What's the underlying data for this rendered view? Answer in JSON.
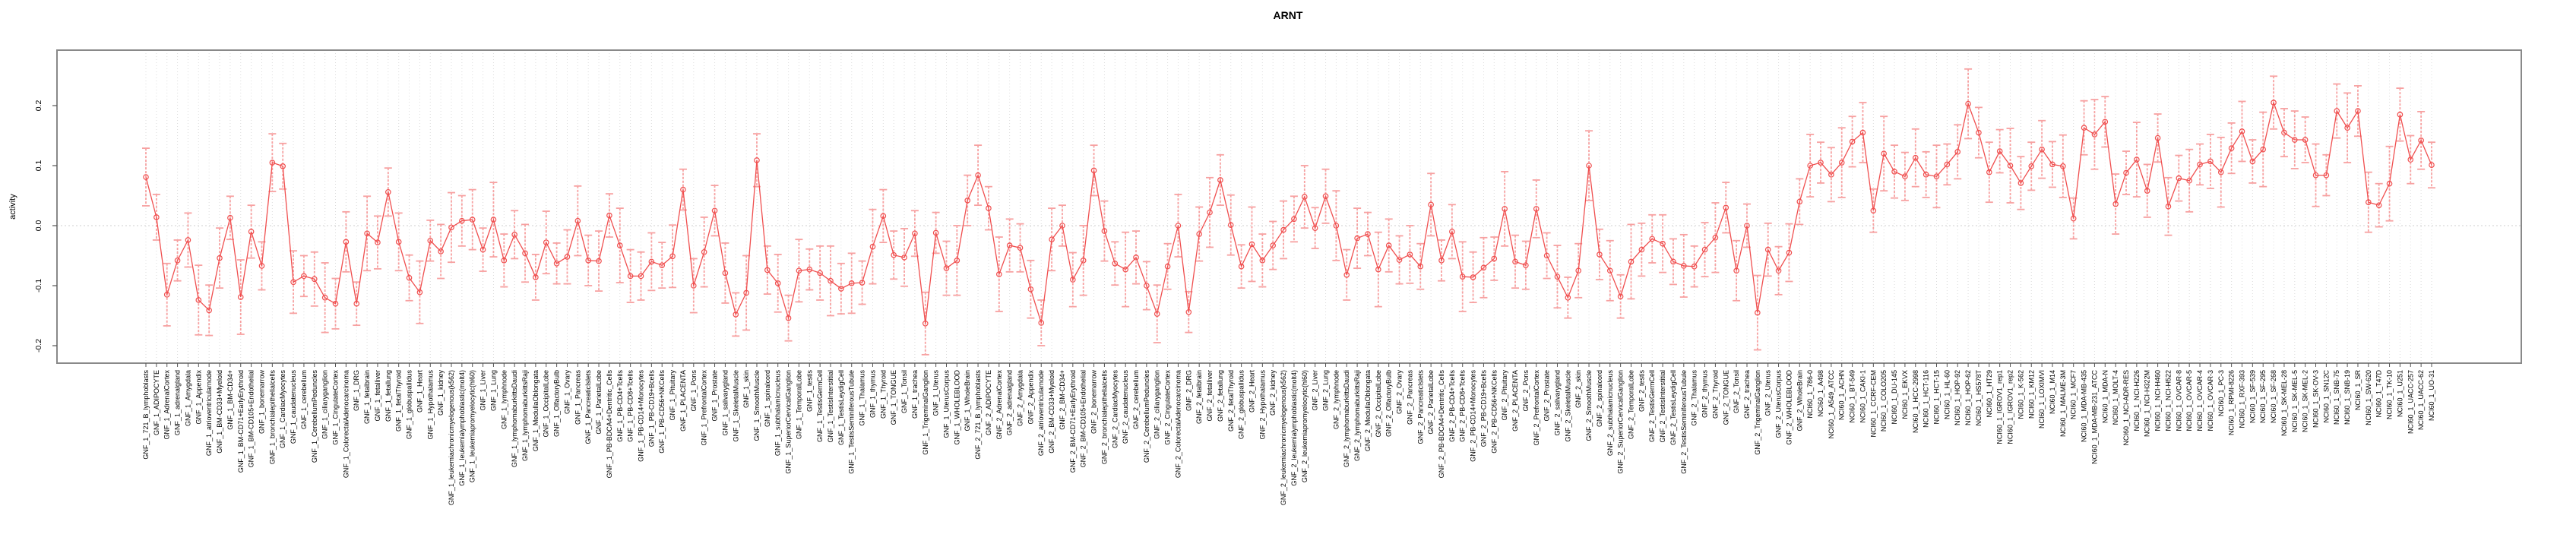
{
  "title": "ARNT",
  "chart_data": {
    "type": "line",
    "title": "ARNT",
    "xlabel": "",
    "ylabel": "activity",
    "ylim": [
      -0.229,
      0.292
    ],
    "yticks": [
      -0.2,
      -0.1,
      0.0,
      0.1,
      0.2
    ],
    "grid": "vertical dotted gridline at every category; horizontal dotted line at 0.0",
    "legend_position": "none",
    "marker": "open-circle",
    "error_bars": true,
    "colors": {
      "series": "#f04f4f",
      "error_bar": "#f7a1a1",
      "gridline": "#dcdcdc",
      "zero_line": "#cfcfcf",
      "plot_border": "#898989",
      "tick": "#555555",
      "text": "#000000",
      "background": "#ffffff"
    },
    "error_pattern": [
      0.048,
      0.038,
      0.052,
      0.034,
      0.045,
      0.058,
      0.042,
      0.05,
      0.036,
      0.062,
      0.044,
      0.04
    ],
    "groups": [
      {
        "prefix": "GNF_1_",
        "tissues": [
          "721_B_lymphoblasts",
          "ADIPOCYTE",
          "AdrenalCortex",
          "adrenalgland",
          "Amygdala",
          "Appendix",
          "atrioventricularnode",
          "BM-CD33+Myeloid",
          "BM-CD34+",
          "BM-CD71+EarlyErythroid",
          "BM-CD105+Endothelial",
          "bonemarrow",
          "bronchialepithelialcells",
          "CardiacMyocytes",
          "caudatenucleus",
          "cerebellum",
          "CerebellumPeduncles",
          "ciliaryganglion",
          "CingulateCortex",
          "ColorectalAdenocarcinoma",
          "DRG",
          "fetalbrain",
          "fetalliver",
          "fetallung",
          "fetalThyroid",
          "globuspallidus",
          "Heart",
          "Hypothalamus",
          "kidney",
          "leukemiachronicmyelogenous(k562)",
          "leukemialymphoblastic(molt4)",
          "leukemiapromyelocytic(hl60)",
          "Liver",
          "Lung",
          "lymphnode",
          "lymphomaburkittsDaudi",
          "lymphomaburkittsRaji",
          "MedullaOblongata",
          "OccipitalLobe",
          "OlfactoryBulb",
          "Ovary",
          "Pancreas",
          "PancreaticIslets",
          "ParietalLobe",
          "PB-BDCA4+Dentritic_Cells",
          "PB-CD4+Tcells",
          "PB-CD8+Tcells",
          "PB-CD14+Monocytes",
          "PB-CD19+Bcells",
          "PB-CD56+NKCells",
          "Pituitary",
          "PLACENTA",
          "Pons",
          "PrefrontalCortex",
          "Prostate",
          "salivarygland",
          "SkeletalMuscle",
          "skin",
          "SmoothMuscle",
          "spinalcord",
          "subthalamicnucleus",
          "SuperiorCervicalGanglion",
          "TemporalLobe",
          "testis",
          "TestisGermCell",
          "TestisInterstitial",
          "TestisLeydigCell",
          "TestisSeminiferousTubule",
          "Thalamus",
          "thymus",
          "Thyroid",
          "TONGUE",
          "Tonsil",
          "trachea",
          "TrigeminalGanglion",
          "Uterus",
          "UterusCorpus",
          "WHOLEBLOOD",
          "WholeBrain"
        ],
        "values": [
          0.081,
          0.014,
          -0.115,
          -0.058,
          -0.024,
          -0.124,
          -0.141,
          -0.054,
          0.013,
          -0.119,
          -0.01,
          -0.067,
          0.105,
          0.099,
          -0.094,
          -0.084,
          -0.089,
          -0.12,
          -0.13,
          -0.027,
          -0.13,
          -0.013,
          -0.028,
          0.056,
          -0.027,
          -0.087,
          -0.111,
          -0.025,
          -0.043,
          -0.003,
          0.008,
          0.01,
          -0.04,
          0.01,
          -0.058,
          -0.015,
          -0.046,
          -0.086,
          -0.028,
          -0.063,
          -0.052,
          0.008,
          -0.058,
          -0.059,
          0.017,
          -0.033,
          -0.084,
          -0.084,
          -0.06,
          -0.066,
          -0.051,
          0.06,
          -0.1,
          -0.044,
          0.025,
          -0.079,
          -0.148,
          -0.112,
          0.109,
          -0.074,
          -0.096,
          -0.154,
          -0.075,
          -0.073,
          -0.079,
          -0.092,
          -0.105,
          -0.096,
          -0.095,
          -0.035,
          0.016,
          -0.049,
          -0.053,
          -0.013,
          -0.163,
          -0.012,
          -0.071,
          -0.058,
          0.042
        ]
      },
      {
        "prefix": "GNF_2_",
        "tissues": [
          "721_B_lymphoblasts",
          "ADIPOCYTE",
          "AdrenalCortex",
          "adrenalgland",
          "Amygdala",
          "Appendix",
          "atrioventricularnode",
          "BM-CD33+Myeloid",
          "BM-CD34+",
          "BM-CD71+EarlyErythroid",
          "BM-CD105+Endothelial",
          "bonemarrow",
          "bronchialepithelialcells",
          "CardiacMyocytes",
          "caudatenucleus",
          "cerebellum",
          "CerebellumPeduncles",
          "ciliaryganglion",
          "CingulateCortex",
          "ColorectalAdenocarcinoma",
          "DRG",
          "fetalbrain",
          "fetalliver",
          "fetallung",
          "fetalThyroid",
          "globuspallidus",
          "Heart",
          "Hypothalamus",
          "kidney",
          "leukemiachronicmyelogenous(k562)",
          "leukemialymphoblastic(molt4)",
          "leukemiapromyelocytic(hl60)",
          "Liver",
          "Lung",
          "lymphnode",
          "lymphomaburkittsDaudi",
          "lymphomaburkittsRaji",
          "MedullaOblongata",
          "OccipitalLobe",
          "OlfactoryBulb",
          "Ovary",
          "Pancreas",
          "PancreaticIslets",
          "ParietalLobe",
          "PB-BDCA4+Dentritic_Cells",
          "PB-CD4+Tcells",
          "PB-CD8+Tcells",
          "PB-CD14+Monocytes",
          "PB-CD19+Bcells",
          "PB-CD56+NKCells",
          "Pituitary",
          "PLACENTA",
          "Pons",
          "PrefrontalCortex",
          "Prostate",
          "salivarygland",
          "SkeletalMuscle",
          "skin",
          "SmoothMuscle",
          "spinalcord",
          "subthalamicnucleus",
          "SuperiorCervicalGanglion",
          "TemporalLobe",
          "testis",
          "TestisGermCell",
          "TestisInterstitial",
          "TestisLeydigCell",
          "TestisSeminiferousTubule",
          "Thalamus",
          "thymus",
          "Thyroid",
          "TONGUE",
          "Tonsil",
          "trachea",
          "TrigeminalGanglion",
          "Uterus",
          "UterusCorpus",
          "WHOLEBLOOD",
          "WholeBrain"
        ],
        "values": [
          0.084,
          0.029,
          -0.081,
          -0.033,
          -0.037,
          -0.106,
          -0.162,
          -0.023,
          0.0,
          -0.09,
          -0.058,
          0.092,
          -0.009,
          -0.063,
          -0.073,
          -0.053,
          -0.1,
          -0.147,
          -0.068,
          0.0,
          -0.144,
          -0.014,
          0.022,
          0.076,
          0.001,
          -0.068,
          -0.031,
          -0.058,
          -0.033,
          -0.007,
          0.011,
          0.048,
          -0.004,
          0.049,
          0.0,
          -0.082,
          -0.021,
          -0.014,
          -0.073,
          -0.033,
          -0.057,
          -0.048,
          -0.068,
          0.035,
          -0.058,
          -0.01,
          -0.085,
          -0.086,
          -0.07,
          -0.055,
          0.028,
          -0.06,
          -0.066,
          0.028,
          -0.05,
          -0.085,
          -0.12,
          -0.075,
          0.1,
          -0.048,
          -0.075,
          -0.118,
          -0.06,
          -0.04,
          -0.022,
          -0.03,
          -0.06,
          -0.067,
          -0.068,
          -0.04,
          -0.02,
          0.03,
          -0.075,
          0.0,
          -0.145,
          -0.04,
          -0.075,
          -0.045,
          0.04
        ]
      },
      {
        "prefix": "NCI60_1_",
        "tissues": [
          "786-0",
          "A498",
          "A549_ATCC",
          "ACHN",
          "BT-549",
          "CAKI-1",
          "CCRF-CEM",
          "COLO205",
          "DU-145",
          "EKVX",
          "HCC-2998",
          "HCT-116",
          "HCT-15",
          "HL-60",
          "HOP-92",
          "HOP-62",
          "HS578T",
          "HT29",
          "IGROV1_rep1",
          "IGROV1_rep2",
          "K-562",
          "KM12",
          "LOXIMVI",
          "M14",
          "MALME-3M",
          "MCF7",
          "MDA-MB-435",
          "MDA-MB-231_ATCC",
          "MDA-N",
          "MOLT-4",
          "NCI-ADR-RES",
          "NCI-H226",
          "NCI-H322M",
          "NCI-H460",
          "NCI-H522",
          "OVCAR-8",
          "OVCAR-5",
          "OVCAR-4",
          "OVCAR-3",
          "PC-3",
          "RPMI-8226",
          "RXF-393",
          "SF-539",
          "SF-295",
          "SF-268",
          "SK-MEL-28",
          "SK-MEL-5",
          "SK-MEL-2",
          "SK-OV-3",
          "SN12C",
          "SNB-75",
          "SNB-19",
          "SR",
          "SW-620",
          "T47D",
          "TK-10",
          "U251",
          "UACC-257",
          "UACC-62",
          "UO-31"
        ],
        "values": [
          0.1,
          0.105,
          0.085,
          0.105,
          0.14,
          0.155,
          0.025,
          0.12,
          0.09,
          0.082,
          0.113,
          0.085,
          0.082,
          0.102,
          0.123,
          0.203,
          0.155,
          0.089,
          0.124,
          0.1,
          0.071,
          0.099,
          0.127,
          0.102,
          0.099,
          0.012,
          0.163,
          0.152,
          0.173,
          0.036,
          0.088,
          0.11,
          0.058,
          0.146,
          0.032,
          0.079,
          0.075,
          0.102,
          0.107,
          0.089,
          0.129,
          0.157,
          0.107,
          0.127,
          0.205,
          0.155,
          0.143,
          0.143,
          0.084,
          0.084,
          0.191,
          0.163,
          0.191,
          0.039,
          0.034,
          0.07,
          0.185,
          0.11,
          0.142,
          0.101
        ]
      }
    ]
  }
}
